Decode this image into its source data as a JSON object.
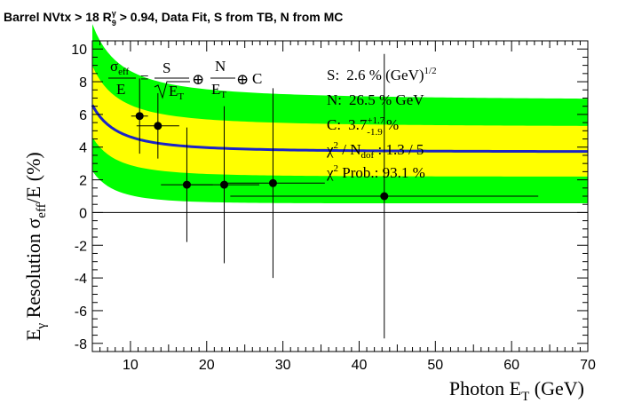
{
  "chart_data": {
    "type": "scatter",
    "title": "Barrel NVtx > 18 R",
    "title_r9_sup": "γ",
    "title_r9_sub": "9",
    "title_rest": " > 0.94, Data Fit, S from TB, N from MC",
    "xlabel": "Photon E",
    "xlabel_sub": "T",
    "xlabel_unit": " (GeV)",
    "ylabel": "E",
    "ylabel_sub": "γ",
    "ylabel_mid": " Resolution σ",
    "ylabel_sub2": "eff",
    "ylabel_tail": "/E (%)",
    "xlim": [
      5,
      70
    ],
    "ylim": [
      -8.5,
      10.5
    ],
    "xticks": [
      10,
      20,
      30,
      40,
      50,
      60,
      70
    ],
    "yticks": [
      -8,
      -6,
      -4,
      -2,
      0,
      2,
      4,
      6,
      8,
      10
    ],
    "grid": false,
    "colors": {
      "fit_line": "#1a23c8",
      "band_outer": "#00ff00",
      "band_inner": "#ffff00",
      "points": "#000000"
    },
    "points": [
      {
        "x": 11.2,
        "y": 5.9,
        "xerr": 1.1,
        "yerr": 2.3
      },
      {
        "x": 13.6,
        "y": 5.3,
        "xerr": 2.8,
        "yerr": 2.0
      },
      {
        "x": 17.4,
        "y": 1.7,
        "xerr": 3.4,
        "yerr": 3.5
      },
      {
        "x": 22.3,
        "y": 1.7,
        "xerr": 4.6,
        "yerr": 4.8
      },
      {
        "x": 28.7,
        "y": 1.8,
        "xerr": 6.8,
        "yerr": 5.8
      },
      {
        "x": 43.3,
        "y": 1.0,
        "xerr": 20.2,
        "yerr": 8.7
      }
    ],
    "fit": {
      "S": 2.6,
      "N": 26.5,
      "C": 3.7,
      "band_inner_halfwidth": 1.5,
      "band_outer_halfwidth": 3.1
    },
    "formula": {
      "sigma": "σ",
      "sigma_sub": "eff",
      "E": "E",
      "S": "S",
      "ET": "E",
      "T": "T",
      "oplus": "⊕",
      "N": "N",
      "C": "C"
    },
    "stats": {
      "s_label": "S:",
      "s_value": "2.6 % (GeV)",
      "s_sup": "1/2",
      "n_label": "N:",
      "n_value": "26.5 % GeV",
      "c_label": "C:",
      "c_value": "3.7",
      "c_sup": "+1.7",
      "c_sub": "-1.9",
      "c_unit": " %",
      "chi_label": "χ",
      "chi_sup": "2",
      "chi_mid": " / N",
      "chi_sub": "dof",
      "chi_value": " : 1.3 / 5",
      "prob_label": "χ",
      "prob_sup": "2",
      "prob_value": " Prob.: 93.1 %"
    }
  }
}
